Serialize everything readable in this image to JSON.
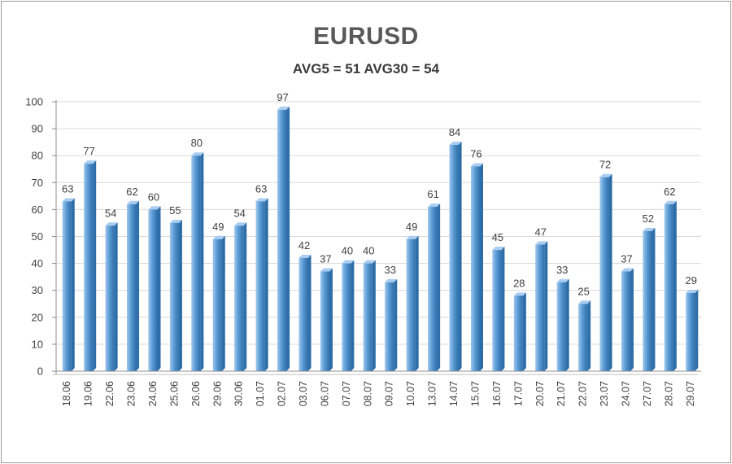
{
  "chart_data": {
    "type": "bar",
    "title": "EURUSD",
    "subtitle": "AVG5 = 51 AVG30 = 54",
    "categories": [
      "18.06",
      "19.06",
      "22.06",
      "23.06",
      "24.06",
      "25.06",
      "26.06",
      "29.06",
      "30.06",
      "01.07",
      "02.07",
      "03.07",
      "06.07",
      "07.07",
      "08.07",
      "09.07",
      "10.07",
      "13.07",
      "14.07",
      "15.07",
      "16.07",
      "17.07",
      "20.07",
      "21.07",
      "22.07",
      "23.07",
      "24.07",
      "27.07",
      "28.07",
      "29.07"
    ],
    "values": [
      63,
      77,
      54,
      62,
      60,
      55,
      80,
      49,
      54,
      63,
      97,
      42,
      37,
      40,
      40,
      33,
      49,
      61,
      84,
      76,
      45,
      28,
      47,
      33,
      25,
      72,
      37,
      52,
      62,
      29
    ],
    "ylim": [
      0,
      100
    ],
    "yticks": [
      0,
      10,
      20,
      30,
      40,
      50,
      60,
      70,
      80,
      90,
      100
    ],
    "grid": true,
    "legend": "none",
    "colors": {
      "bar_light": "#a9cdf0",
      "bar_mid": "#5b9bd5",
      "bar_dark": "#2e6ea8",
      "grid": "#d9d9d9",
      "axis": "#8c8c8c"
    }
  }
}
